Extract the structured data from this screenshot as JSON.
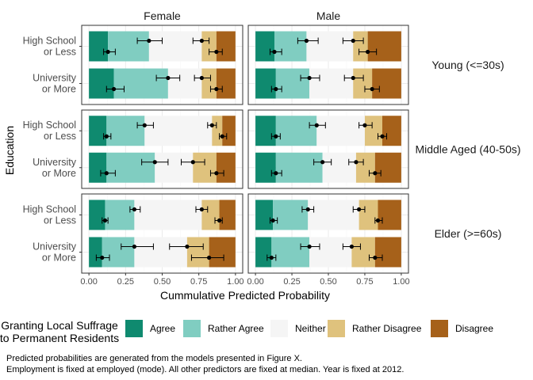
{
  "chart_data": {
    "type": "bar",
    "orientation": "horizontal-stacked",
    "xlabel": "Cummulative Predicted Probability",
    "ylabel": "Education",
    "xlim": [
      0,
      1
    ],
    "x_ticks": [
      "0.00",
      "0.25",
      "0.50",
      "0.75",
      "1.00"
    ],
    "x_tick_values": [
      0,
      0.25,
      0.5,
      0.75,
      1.0
    ],
    "columns": [
      "Female",
      "Male"
    ],
    "rows": [
      "Young (<=30s)",
      "Middle Aged (40-50s)",
      "Elder (>=60s)"
    ],
    "categories": [
      "High School\nor Less",
      "University\nor More"
    ],
    "legend": {
      "title": "Granting Local Suffrage\nto Permanent Residents",
      "position": "bottom",
      "items": [
        {
          "name": "Agree",
          "color": "#0f8a6f"
        },
        {
          "name": "Rather Agree",
          "color": "#80cdc1"
        },
        {
          "name": "Neither",
          "color": "#f5f5f5"
        },
        {
          "name": "Rather Disagree",
          "color": "#dfc27d"
        },
        {
          "name": "Disagree",
          "color": "#a6611a"
        }
      ]
    },
    "grid": true,
    "panels": [
      {
        "column": "Female",
        "row": "Young (<=30s)",
        "bars": [
          {
            "category": "High School\nor Less",
            "cum": [
              0.13,
              0.41,
              0.77,
              0.87,
              1.0
            ],
            "points": [
              {
                "x": 0.13,
                "lo": 0.1,
                "hi": 0.18
              },
              {
                "x": 0.41,
                "lo": 0.33,
                "hi": 0.5
              },
              {
                "x": 0.77,
                "lo": 0.71,
                "hi": 0.82
              },
              {
                "x": 0.87,
                "lo": 0.82,
                "hi": 0.91
              }
            ]
          },
          {
            "category": "University\nor More",
            "cum": [
              0.17,
              0.54,
              0.77,
              0.87,
              1.0
            ],
            "points": [
              {
                "x": 0.17,
                "lo": 0.12,
                "hi": 0.24
              },
              {
                "x": 0.54,
                "lo": 0.46,
                "hi": 0.62
              },
              {
                "x": 0.77,
                "lo": 0.72,
                "hi": 0.83
              },
              {
                "x": 0.87,
                "lo": 0.83,
                "hi": 0.91
              }
            ]
          }
        ]
      },
      {
        "column": "Male",
        "row": "Young (<=30s)",
        "bars": [
          {
            "category": "High School\nor Less",
            "cum": [
              0.13,
              0.35,
              0.67,
              0.77,
              1.0
            ],
            "points": [
              {
                "x": 0.13,
                "lo": 0.1,
                "hi": 0.18
              },
              {
                "x": 0.35,
                "lo": 0.29,
                "hi": 0.43
              },
              {
                "x": 0.67,
                "lo": 0.6,
                "hi": 0.74
              },
              {
                "x": 0.77,
                "lo": 0.71,
                "hi": 0.83
              }
            ]
          },
          {
            "category": "University\nor More",
            "cum": [
              0.14,
              0.37,
              0.67,
              0.8,
              1.0
            ],
            "points": [
              {
                "x": 0.14,
                "lo": 0.11,
                "hi": 0.18
              },
              {
                "x": 0.37,
                "lo": 0.31,
                "hi": 0.44
              },
              {
                "x": 0.67,
                "lo": 0.61,
                "hi": 0.74
              },
              {
                "x": 0.8,
                "lo": 0.75,
                "hi": 0.85
              }
            ]
          }
        ]
      },
      {
        "column": "Female",
        "row": "Middle Aged (40-50s)",
        "bars": [
          {
            "category": "High School\nor Less",
            "cum": [
              0.12,
              0.38,
              0.84,
              0.91,
              1.0
            ],
            "points": [
              {
                "x": 0.12,
                "lo": 0.1,
                "hi": 0.15
              },
              {
                "x": 0.38,
                "lo": 0.33,
                "hi": 0.44
              },
              {
                "x": 0.84,
                "lo": 0.81,
                "hi": 0.87
              },
              {
                "x": 0.91,
                "lo": 0.89,
                "hi": 0.94
              }
            ]
          },
          {
            "category": "University\nor More",
            "cum": [
              0.12,
              0.45,
              0.71,
              0.87,
              1.0
            ],
            "points": [
              {
                "x": 0.12,
                "lo": 0.08,
                "hi": 0.18
              },
              {
                "x": 0.45,
                "lo": 0.36,
                "hi": 0.54
              },
              {
                "x": 0.71,
                "lo": 0.63,
                "hi": 0.79
              },
              {
                "x": 0.87,
                "lo": 0.83,
                "hi": 0.92
              }
            ]
          }
        ]
      },
      {
        "column": "Male",
        "row": "Middle Aged (40-50s)",
        "bars": [
          {
            "category": "High School\nor Less",
            "cum": [
              0.14,
              0.42,
              0.75,
              0.87,
              1.0
            ],
            "points": [
              {
                "x": 0.14,
                "lo": 0.11,
                "hi": 0.17
              },
              {
                "x": 0.42,
                "lo": 0.37,
                "hi": 0.48
              },
              {
                "x": 0.75,
                "lo": 0.71,
                "hi": 0.8
              },
              {
                "x": 0.87,
                "lo": 0.84,
                "hi": 0.9
              }
            ]
          },
          {
            "category": "University\nor More",
            "cum": [
              0.14,
              0.46,
              0.69,
              0.82,
              1.0
            ],
            "points": [
              {
                "x": 0.14,
                "lo": 0.11,
                "hi": 0.18
              },
              {
                "x": 0.46,
                "lo": 0.4,
                "hi": 0.52
              },
              {
                "x": 0.69,
                "lo": 0.64,
                "hi": 0.74
              },
              {
                "x": 0.82,
                "lo": 0.78,
                "hi": 0.86
              }
            ]
          }
        ]
      },
      {
        "column": "Female",
        "row": "Elder (>=60s)",
        "bars": [
          {
            "category": "High School\nor Less",
            "cum": [
              0.11,
              0.31,
              0.77,
              0.89,
              1.0
            ],
            "points": [
              {
                "x": 0.11,
                "lo": 0.09,
                "hi": 0.13
              },
              {
                "x": 0.31,
                "lo": 0.28,
                "hi": 0.35
              },
              {
                "x": 0.77,
                "lo": 0.73,
                "hi": 0.81
              },
              {
                "x": 0.89,
                "lo": 0.86,
                "hi": 0.91
              }
            ]
          },
          {
            "category": "University\nor More",
            "cum": [
              0.09,
              0.31,
              0.67,
              0.82,
              1.0
            ],
            "points": [
              {
                "x": 0.09,
                "lo": 0.05,
                "hi": 0.14
              },
              {
                "x": 0.31,
                "lo": 0.22,
                "hi": 0.44
              },
              {
                "x": 0.67,
                "lo": 0.55,
                "hi": 0.78
              },
              {
                "x": 0.82,
                "lo": 0.7,
                "hi": 0.92
              }
            ]
          }
        ]
      },
      {
        "column": "Male",
        "row": "Elder (>=60s)",
        "bars": [
          {
            "category": "High School\nor Less",
            "cum": [
              0.12,
              0.36,
              0.71,
              0.84,
              1.0
            ],
            "points": [
              {
                "x": 0.12,
                "lo": 0.1,
                "hi": 0.15
              },
              {
                "x": 0.36,
                "lo": 0.32,
                "hi": 0.4
              },
              {
                "x": 0.71,
                "lo": 0.67,
                "hi": 0.75
              },
              {
                "x": 0.84,
                "lo": 0.82,
                "hi": 0.87
              }
            ]
          },
          {
            "category": "University\nor More",
            "cum": [
              0.11,
              0.37,
              0.66,
              0.82,
              1.0
            ],
            "points": [
              {
                "x": 0.11,
                "lo": 0.08,
                "hi": 0.14
              },
              {
                "x": 0.37,
                "lo": 0.31,
                "hi": 0.44
              },
              {
                "x": 0.66,
                "lo": 0.6,
                "hi": 0.72
              },
              {
                "x": 0.82,
                "lo": 0.78,
                "hi": 0.87
              }
            ]
          }
        ]
      }
    ]
  },
  "notes": [
    "Predicted probabilities are generated from the models presented in Figure X.",
    "Employment is fixed at employed (mode). All other predictors are fixed at median. Year is fixed at 2012."
  ]
}
